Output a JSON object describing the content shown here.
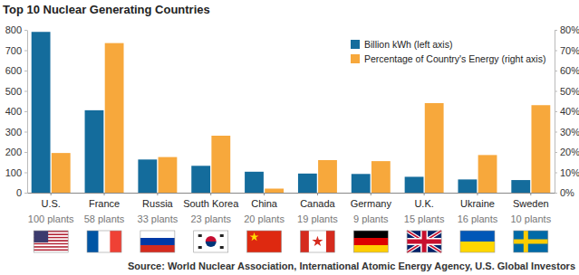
{
  "chart_data": {
    "type": "bar",
    "title": "Top 10 Nuclear Generating Countries",
    "categories": [
      "U.S.",
      "France",
      "Russia",
      "South Korea",
      "China",
      "Canada",
      "Germany",
      "U.K.",
      "Ukraine",
      "Sweden"
    ],
    "annotations": [
      "100 plants",
      "58 plants",
      "33 plants",
      "23 plants",
      "20 plants",
      "19 plants",
      "9 plants",
      "15 plants",
      "16 plants",
      "10 plants"
    ],
    "source": "Source: World Nuclear Association, International Atomic Energy Agency, U.S. Global Investors",
    "series": [
      {
        "name": "Billion kWh (left axis)",
        "color": "#146c9c",
        "values": [
          790,
          405,
          163,
          132,
          103,
          94,
          92,
          78,
          65,
          62
        ]
      },
      {
        "name": "Percentage of Country's Energy (right axis)",
        "color": "#f7a83c",
        "axis": "y2",
        "values": [
          19.5,
          73.5,
          17.5,
          28,
          2,
          16,
          15.5,
          44,
          18.5,
          43
        ]
      }
    ],
    "ylim": [
      0,
      800
    ],
    "yticks": [
      0,
      100,
      200,
      300,
      400,
      500,
      600,
      700,
      800
    ],
    "y2lim": [
      0,
      80
    ],
    "y2ticks": [
      {
        "value": 0,
        "label": "0%"
      },
      {
        "value": 10,
        "label": "10%"
      },
      {
        "value": 20,
        "label": "20%"
      },
      {
        "value": 30,
        "label": "30%"
      },
      {
        "value": 40,
        "label": "40%"
      },
      {
        "value": 50,
        "label": "50%"
      },
      {
        "value": 60,
        "label": "60%"
      },
      {
        "value": 70,
        "label": "70%"
      },
      {
        "value": 80,
        "label": "80%"
      }
    ],
    "grid": false,
    "legend": "top-right"
  }
}
